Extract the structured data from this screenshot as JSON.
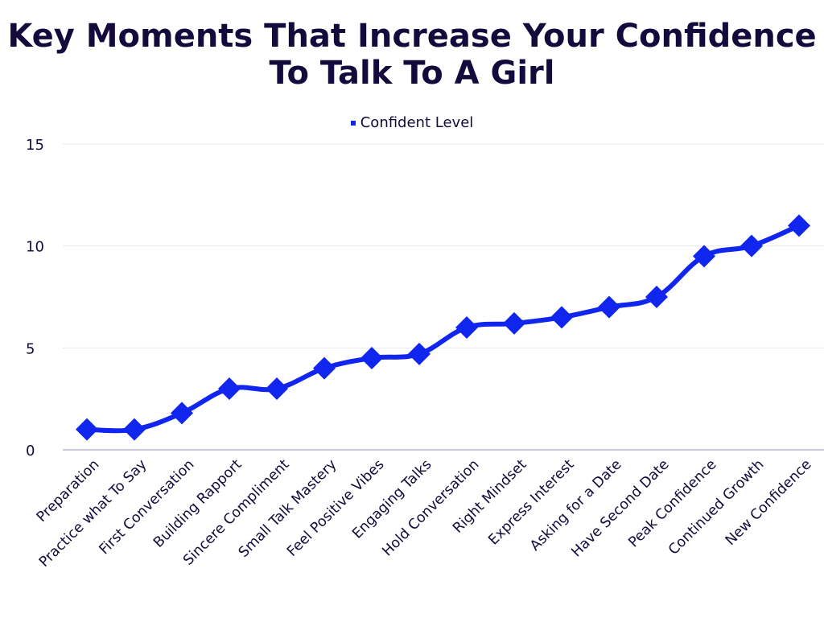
{
  "chart_data": {
    "type": "line",
    "title": "Key Moments That Increase Your Confidence To Talk To A Girl",
    "legend": {
      "position": "top",
      "entries": [
        "Confident Level"
      ]
    },
    "categories": [
      "Preparation",
      "Practice what To Say",
      "First Conversation",
      "Building Rapport",
      "Sincere Compliment",
      "Small Talk Mastery",
      "Feel Positive Vibes",
      "Engaging Talks",
      "Hold Conversation",
      "Right Mindset",
      "Express Interest",
      "Asking for a Date",
      "Have Second Date",
      "Peak Confidence",
      "Continued Growth",
      "New Confidence"
    ],
    "series": [
      {
        "name": "Confident Level",
        "values": [
          1,
          1,
          1.8,
          3,
          3,
          4,
          4.5,
          4.7,
          6,
          6.2,
          6.5,
          7,
          7.5,
          9.5,
          10,
          11
        ],
        "color": "#1025ee",
        "marker": "diamond",
        "smooth": true
      }
    ],
    "xlabel": "",
    "ylabel": "",
    "ylim": [
      0,
      15
    ],
    "yticks": [
      0,
      5,
      10,
      15
    ],
    "grid": true
  }
}
